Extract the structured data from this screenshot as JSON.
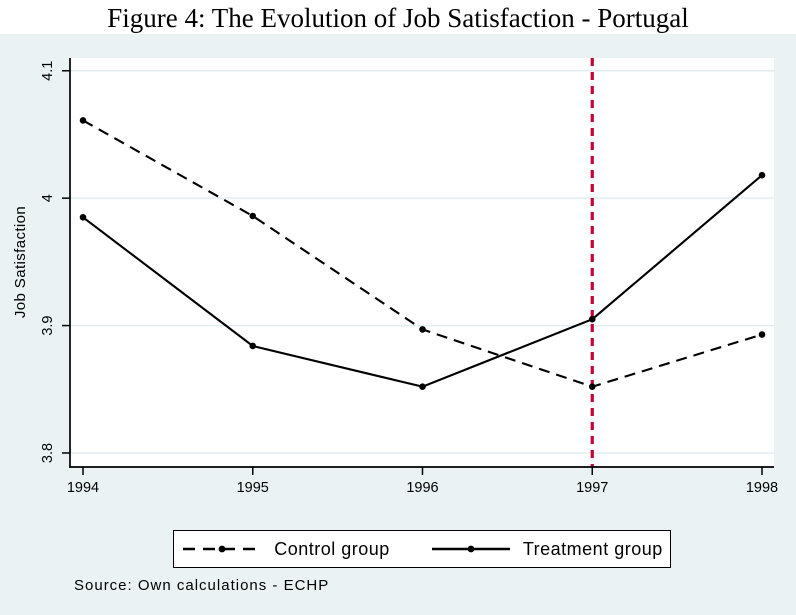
{
  "title": "Figure 4: The Evolution of Job Satisfaction - Portugal",
  "source_note": "Source: Own calculations - ECHP",
  "colors": {
    "background": "#eaf2f3",
    "plot_background": "#ffffff",
    "gridline": "#e2edf2",
    "axis": "#000000",
    "series": "#000000",
    "event_line": "#c10534"
  },
  "chart_data": {
    "type": "line",
    "x": [
      1994,
      1995,
      1996,
      1997,
      1998
    ],
    "xtick_labels": [
      "1994",
      "1995",
      "1996",
      "1997",
      "1998"
    ],
    "yticks": [
      3.8,
      3.9,
      4.0,
      4.1
    ],
    "ytick_labels": [
      "3.8",
      "3.9",
      "4",
      "4.1"
    ],
    "ylim": [
      3.789,
      4.11
    ],
    "series": [
      {
        "name": "Control group",
        "style": "dashed",
        "marker": "circle",
        "values": [
          4.061,
          3.986,
          3.897,
          3.852,
          3.893
        ]
      },
      {
        "name": "Treatment group",
        "style": "solid",
        "marker": "circle",
        "values": [
          3.985,
          3.884,
          3.852,
          3.905,
          4.018
        ]
      }
    ],
    "title": "",
    "xlabel": "",
    "ylabel": "Job Satisfaction",
    "grid": true,
    "legend_position": "bottom",
    "vline": {
      "x": 1997,
      "style": "dashed",
      "color": "#c10534"
    }
  }
}
